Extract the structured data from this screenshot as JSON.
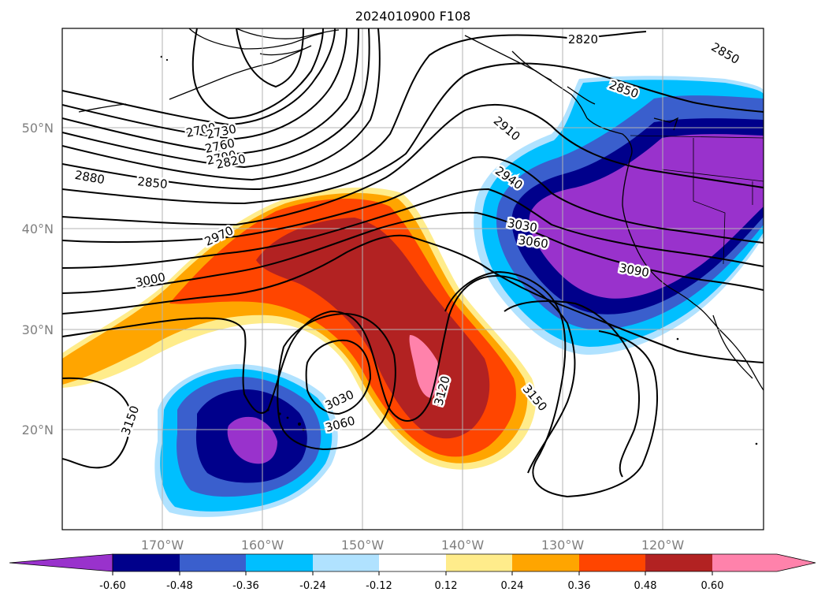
{
  "title": "2024010900 F108",
  "map": {
    "lon_range": [
      "180°",
      "110°W"
    ],
    "lat_range": [
      "10°N",
      "60°N"
    ],
    "gridlines": true,
    "lat_labels": [
      "50°N",
      "40°N",
      "30°N",
      "20°N"
    ],
    "lon_labels": [
      "170°W",
      "160°W",
      "150°W",
      "140°W",
      "130°W",
      "120°W"
    ]
  },
  "colorbar": {
    "ticks": [
      "-0.60",
      "-0.48",
      "-0.36",
      "-0.24",
      "-0.12",
      "0.12",
      "0.24",
      "0.36",
      "0.48",
      "0.60"
    ],
    "colors": [
      "#9932cc",
      "#00008b",
      "#3a5fcd",
      "#00bfff",
      "#b0e2ff",
      "#ffffff",
      "#ffec8b",
      "#ffa500",
      "#ff4500",
      "#b22222",
      "#ff82ab"
    ],
    "extend": "both"
  },
  "contours": {
    "color": "#000000",
    "labels": [
      {
        "text": "2820"
      },
      {
        "text": "2850"
      },
      {
        "text": "2850"
      },
      {
        "text": "2910"
      },
      {
        "text": "2940"
      },
      {
        "text": "2700"
      },
      {
        "text": "2730"
      },
      {
        "text": "2760"
      },
      {
        "text": "2790"
      },
      {
        "text": "2820"
      },
      {
        "text": "2880"
      },
      {
        "text": "2850"
      },
      {
        "text": "2970"
      },
      {
        "text": "3000"
      },
      {
        "text": "3030"
      },
      {
        "text": "3060"
      },
      {
        "text": "3090"
      },
      {
        "text": "3030"
      },
      {
        "text": "3060"
      },
      {
        "text": "3120"
      },
      {
        "text": "3150"
      },
      {
        "text": "3150"
      }
    ]
  }
}
